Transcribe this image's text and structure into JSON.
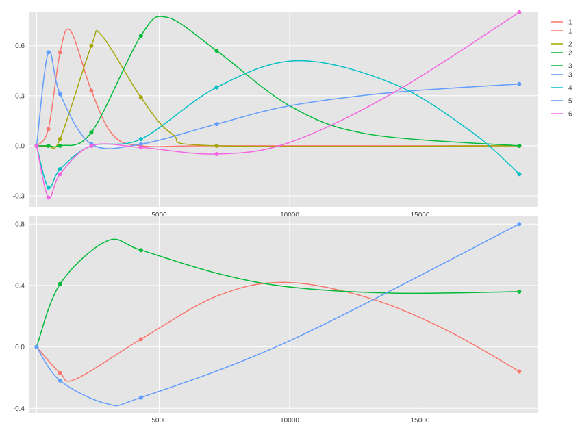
{
  "chart_data": [
    {
      "type": "line",
      "panel": "top",
      "x_axis": {
        "range": [
          0,
          19500
        ],
        "ticks": [
          5000,
          10000,
          15000
        ],
        "tick_labels": [
          "5000",
          "10000",
          "15000"
        ]
      },
      "y_axis": {
        "range": [
          -0.37,
          0.8
        ],
        "ticks": [
          -0.3,
          0,
          0.3,
          0.6
        ],
        "tick_labels": [
          "-0.3",
          "0.0",
          "0.3",
          "0.6"
        ]
      },
      "grid": true,
      "legend_position": "right",
      "series": [
        {
          "name": "1",
          "color": "#F8766D",
          "points": [
            [
              300,
              0
            ],
            [
              750,
              0.1
            ],
            [
              1200,
              0.56
            ],
            [
              1600,
              0.69
            ],
            [
              2400,
              0.33
            ],
            [
              3200,
              0.07
            ],
            [
              4300,
              0
            ],
            [
              7200,
              0
            ],
            [
              18800,
              0
            ]
          ]
        },
        {
          "name": "1",
          "color": "#F8766D",
          "points": []
        },
        {
          "name": "2",
          "color": "#A3A500",
          "points": [
            [
              300,
              0
            ],
            [
              750,
              0
            ],
            [
              1200,
              0.04
            ],
            [
              2400,
              0.6
            ],
            [
              2800,
              0.66
            ],
            [
              4300,
              0.29
            ],
            [
              5500,
              0.07
            ],
            [
              7200,
              0
            ],
            [
              18800,
              0
            ]
          ]
        },
        {
          "name": "2",
          "color": "#00BA38",
          "points": [
            [
              300,
              0
            ],
            [
              750,
              0
            ],
            [
              1200,
              0
            ],
            [
              2400,
              0.08
            ],
            [
              4300,
              0.66
            ],
            [
              5300,
              0.77
            ],
            [
              7200,
              0.57
            ],
            [
              10000,
              0.24
            ],
            [
              13000,
              0.07
            ],
            [
              18800,
              0
            ]
          ]
        },
        {
          "name": "3",
          "color": "#00BA38",
          "points": []
        },
        {
          "name": "3",
          "color": "#619CFF",
          "points": [
            [
              300,
              0
            ],
            [
              750,
              0.56
            ],
            [
              1200,
              0.31
            ],
            [
              2400,
              0.01
            ],
            [
              4300,
              0.01
            ],
            [
              7200,
              0.13
            ],
            [
              10000,
              0.24
            ],
            [
              14000,
              0.32
            ],
            [
              18800,
              0.37
            ]
          ]
        },
        {
          "name": "4",
          "color": "#00BFC4",
          "points": [
            [
              300,
              0
            ],
            [
              750,
              -0.25
            ],
            [
              1200,
              -0.14
            ],
            [
              2400,
              0
            ],
            [
              4300,
              0.04
            ],
            [
              7200,
              0.35
            ],
            [
              10300,
              0.51
            ],
            [
              14000,
              0.37
            ],
            [
              17000,
              0.08
            ],
            [
              18800,
              -0.17
            ]
          ]
        },
        {
          "name": "5",
          "color": "#619CFF",
          "points": []
        },
        {
          "name": "6",
          "color": "#F564E3",
          "points": [
            [
              300,
              0
            ],
            [
              750,
              -0.31
            ],
            [
              1200,
              -0.17
            ],
            [
              2400,
              0
            ],
            [
              4300,
              -0.01
            ],
            [
              7200,
              -0.05
            ],
            [
              10000,
              0.02
            ],
            [
              14000,
              0.32
            ],
            [
              18800,
              0.8
            ]
          ]
        }
      ]
    },
    {
      "type": "line",
      "panel": "bottom",
      "x_axis": {
        "range": [
          0,
          19500
        ],
        "ticks": [
          5000,
          10000,
          15000
        ],
        "tick_labels": [
          "5000",
          "10000",
          "15000"
        ]
      },
      "y_axis": {
        "range": [
          -0.43,
          0.85
        ],
        "ticks": [
          -0.4,
          0,
          0.4,
          0.8
        ],
        "tick_labels": [
          "-0.4",
          "0.0",
          "0.4",
          "0.8"
        ]
      },
      "grid": true,
      "series": [
        {
          "color": "#F8766D",
          "points": [
            [
              300,
              0
            ],
            [
              1200,
              -0.17
            ],
            [
              1800,
              -0.21
            ],
            [
              4300,
              0.05
            ],
            [
              7200,
              0.33
            ],
            [
              9800,
              0.42
            ],
            [
              13000,
              0.32
            ],
            [
              16000,
              0.11
            ],
            [
              18800,
              -0.16
            ]
          ]
        },
        {
          "color": "#00BA38",
          "points": [
            [
              300,
              0
            ],
            [
              1200,
              0.41
            ],
            [
              3000,
              0.69
            ],
            [
              4300,
              0.63
            ],
            [
              7200,
              0.48
            ],
            [
              10000,
              0.39
            ],
            [
              14000,
              0.35
            ],
            [
              18800,
              0.36
            ]
          ]
        },
        {
          "color": "#619CFF",
          "points": [
            [
              300,
              0
            ],
            [
              1200,
              -0.22
            ],
            [
              3000,
              -0.37
            ],
            [
              4300,
              -0.33
            ],
            [
              10000,
              0.04
            ],
            [
              18800,
              0.8
            ]
          ]
        }
      ]
    }
  ]
}
